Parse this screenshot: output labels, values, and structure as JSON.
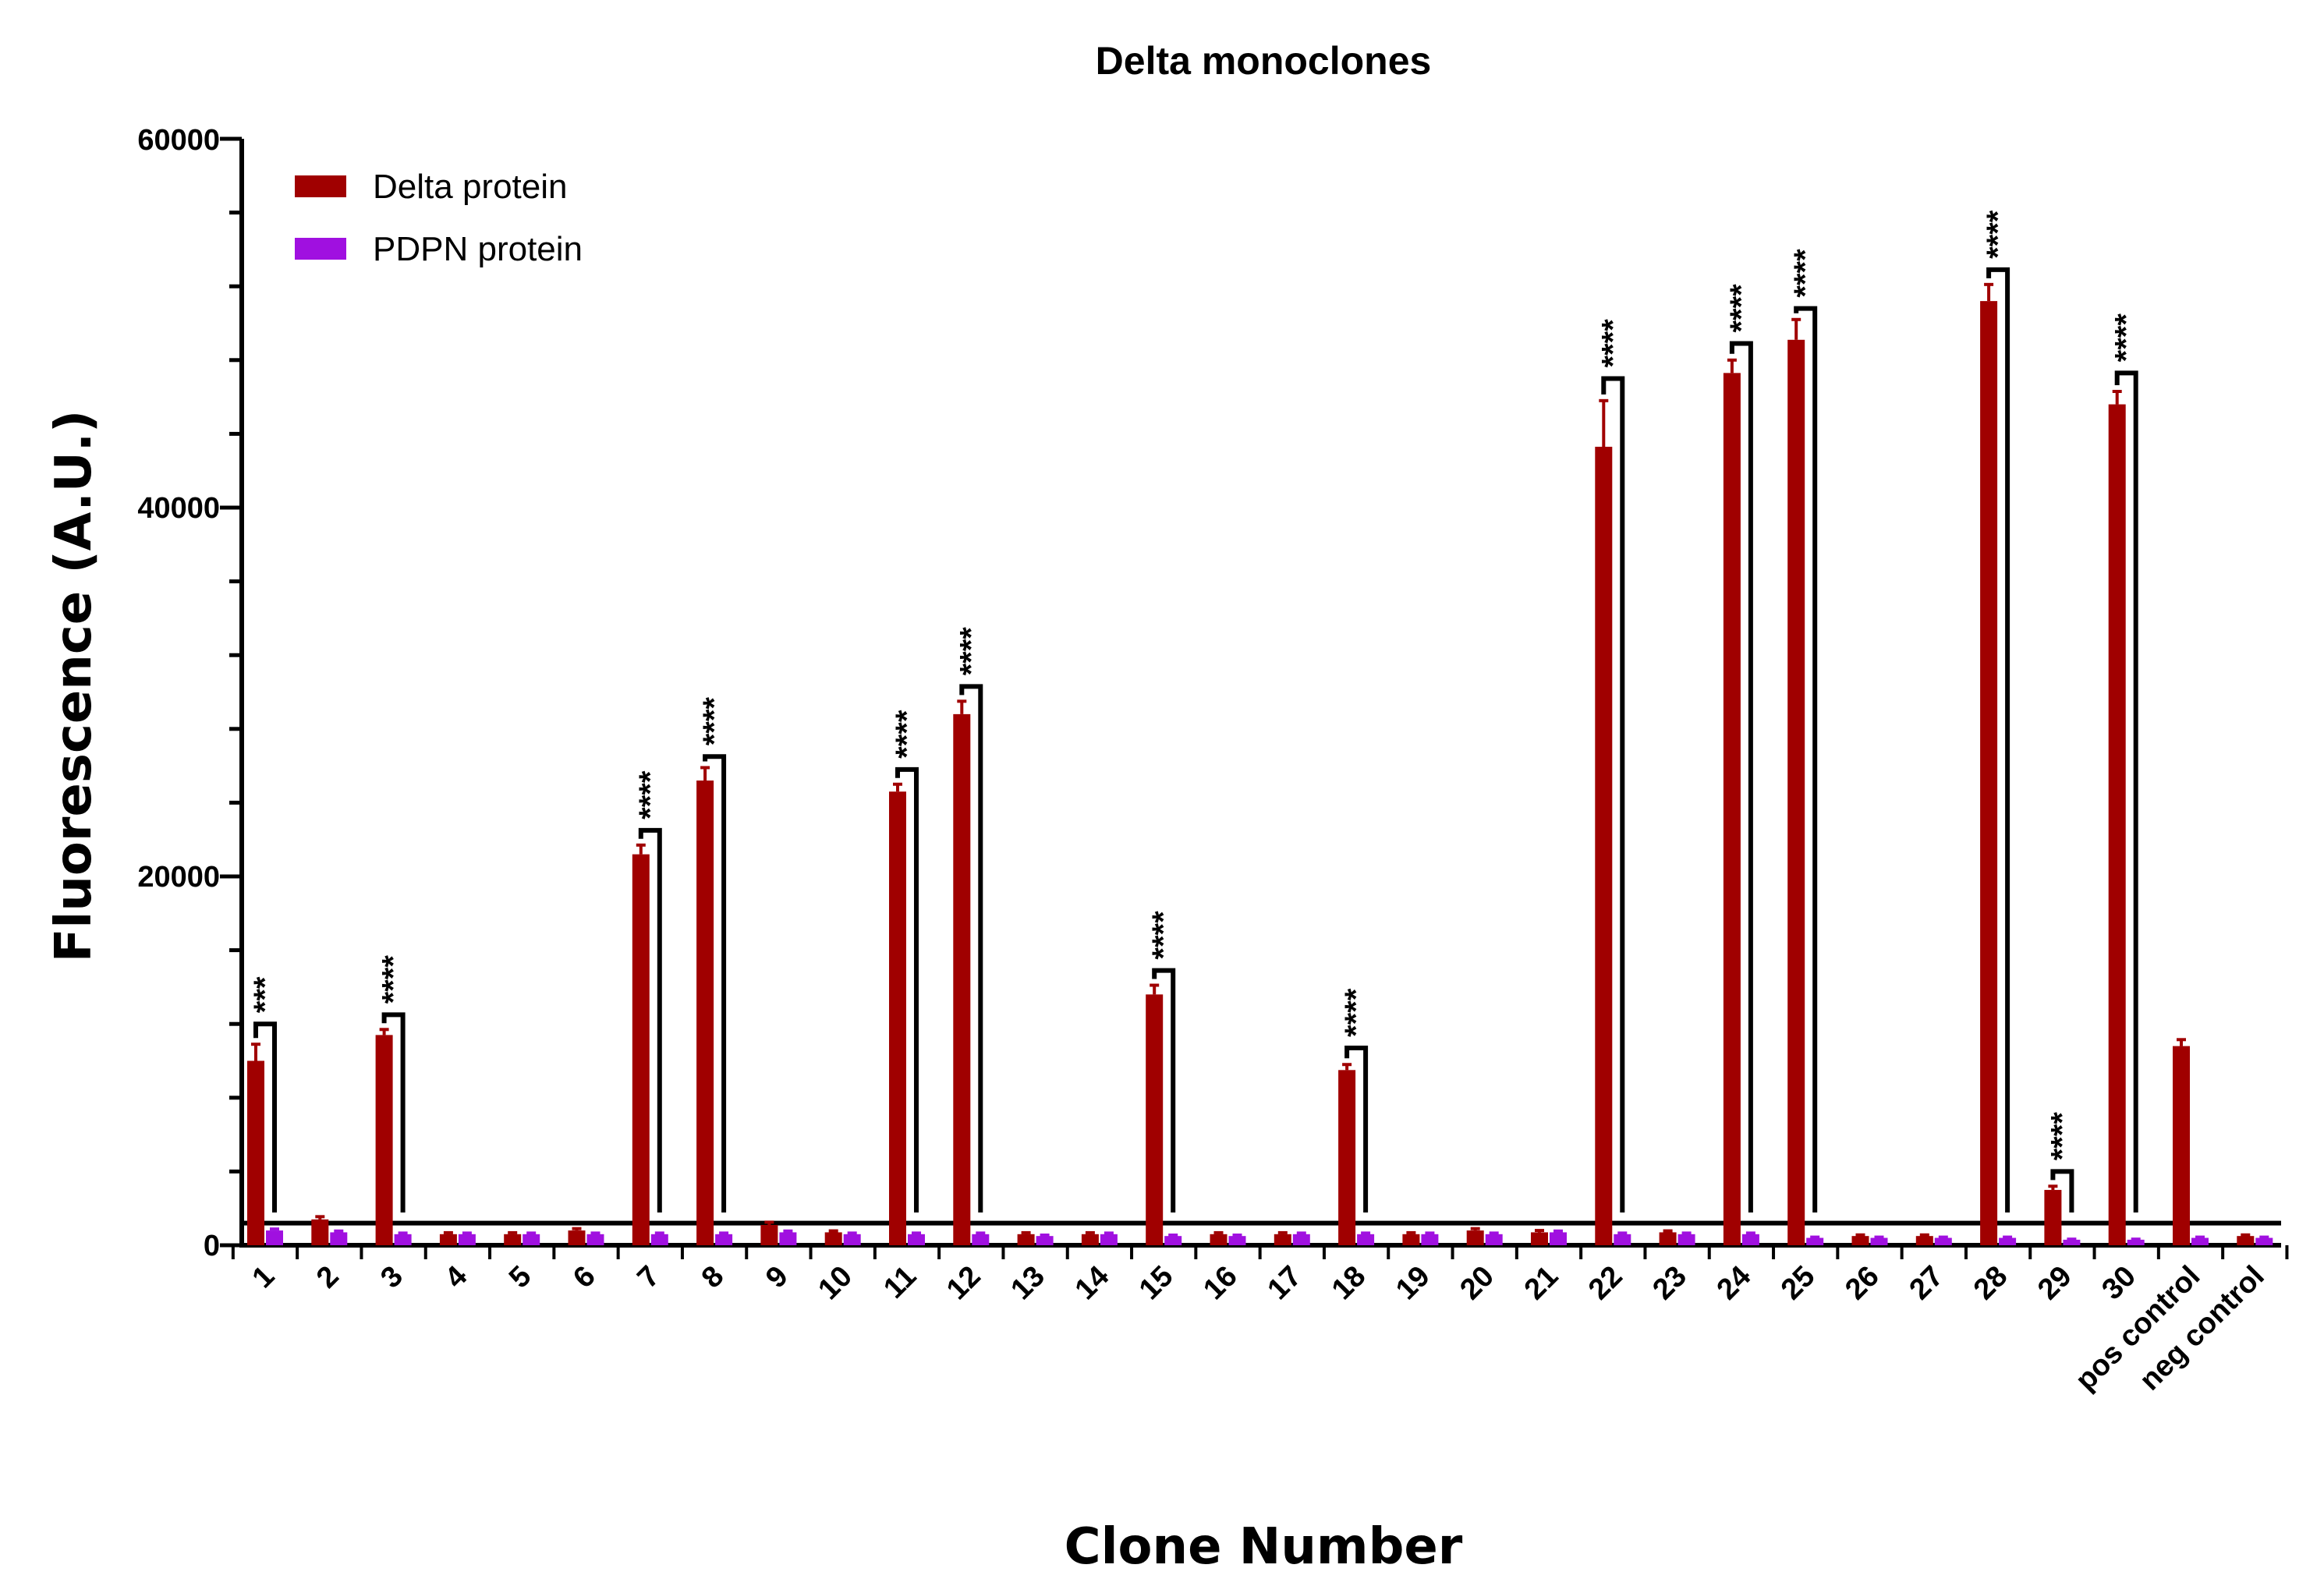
{
  "chart_data": {
    "type": "bar",
    "title": "Delta monoclones",
    "xlabel": "Clone Number",
    "ylabel": "Fluorescence (A.U.)",
    "ylim": [
      0,
      60000
    ],
    "yticks": [
      "0",
      "20000",
      "40000",
      "60000"
    ],
    "threshold": 1200,
    "legend_position": "top-left",
    "categories": [
      "1",
      "2",
      "3",
      "4",
      "5",
      "6",
      "7",
      "8",
      "9",
      "10",
      "11",
      "12",
      "13",
      "14",
      "15",
      "16",
      "17",
      "18",
      "19",
      "20",
      "21",
      "22",
      "23",
      "24",
      "25",
      "26",
      "27",
      "28",
      "29",
      "30",
      "pos control",
      "neg control"
    ],
    "series": [
      {
        "name": "Delta protein",
        "color": "#a00000",
        "values": [
          10000,
          1400,
          11400,
          600,
          600,
          800,
          21200,
          25200,
          1100,
          700,
          24600,
          28800,
          600,
          600,
          13600,
          600,
          600,
          9500,
          600,
          800,
          700,
          43300,
          700,
          47300,
          49100,
          500,
          500,
          51200,
          3000,
          45600,
          10800,
          500
        ],
        "errors": [
          900,
          150,
          300,
          80,
          80,
          100,
          500,
          700,
          150,
          80,
          400,
          700,
          80,
          80,
          500,
          80,
          80,
          300,
          80,
          100,
          100,
          2500,
          80,
          700,
          1100,
          60,
          60,
          900,
          200,
          700,
          350,
          60
        ]
      },
      {
        "name": "PDPN protein",
        "color": "#a010e0",
        "values": [
          800,
          700,
          600,
          600,
          600,
          600,
          600,
          600,
          700,
          600,
          600,
          600,
          500,
          600,
          500,
          500,
          600,
          600,
          600,
          600,
          700,
          600,
          600,
          600,
          400,
          400,
          400,
          400,
          300,
          300,
          400,
          400
        ],
        "errors": [
          80,
          70,
          60,
          60,
          60,
          60,
          60,
          60,
          70,
          60,
          60,
          60,
          50,
          60,
          50,
          50,
          60,
          60,
          60,
          60,
          70,
          60,
          60,
          60,
          40,
          40,
          40,
          40,
          30,
          30,
          40,
          40
        ]
      }
    ],
    "significance": [
      {
        "category": "1",
        "label": "***",
        "bracket_top": 12000
      },
      {
        "category": "3",
        "label": "****",
        "bracket_top": 12500
      },
      {
        "category": "7",
        "label": "****",
        "bracket_top": 22500
      },
      {
        "category": "8",
        "label": "****",
        "bracket_top": 26500
      },
      {
        "category": "11",
        "label": "****",
        "bracket_top": 25800
      },
      {
        "category": "12",
        "label": "****",
        "bracket_top": 30300
      },
      {
        "category": "15",
        "label": "****",
        "bracket_top": 14900
      },
      {
        "category": "18",
        "label": "****",
        "bracket_top": 10700
      },
      {
        "category": "22",
        "label": "****",
        "bracket_top": 47000
      },
      {
        "category": "24",
        "label": "****",
        "bracket_top": 48900
      },
      {
        "category": "25",
        "label": "****",
        "bracket_top": 50800
      },
      {
        "category": "28",
        "label": "****",
        "bracket_top": 52900
      },
      {
        "category": "29",
        "label": "****",
        "bracket_top": 4000
      },
      {
        "category": "30",
        "label": "****",
        "bracket_top": 47300
      }
    ]
  }
}
